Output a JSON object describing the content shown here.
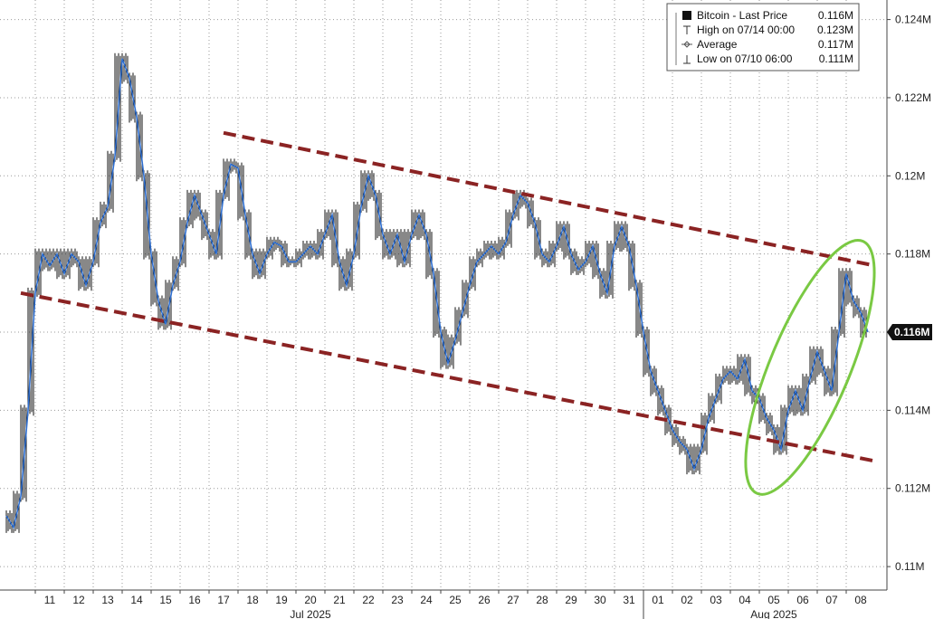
{
  "chart_data": {
    "type": "line",
    "title": "",
    "xlabel": "",
    "ylabel": "",
    "ylim": [
      0.1094,
      0.1245
    ],
    "yticks": [
      {
        "value": 0.11,
        "label": "0.11M"
      },
      {
        "value": 0.112,
        "label": "0.112M"
      },
      {
        "value": 0.114,
        "label": "0.114M"
      },
      {
        "value": 0.116,
        "label": "0.116M"
      },
      {
        "value": 0.118,
        "label": "0.118M"
      },
      {
        "value": 0.12,
        "label": "0.12M"
      },
      {
        "value": 0.122,
        "label": "0.122M"
      },
      {
        "value": 0.124,
        "label": "0.124M"
      }
    ],
    "xlim": [
      "2025-07-10",
      "2025-08-09"
    ],
    "xticks": [
      {
        "date": "2025-07-11",
        "label": "11"
      },
      {
        "date": "2025-07-12",
        "label": "12"
      },
      {
        "date": "2025-07-13",
        "label": "13"
      },
      {
        "date": "2025-07-14",
        "label": "14"
      },
      {
        "date": "2025-07-15",
        "label": "15"
      },
      {
        "date": "2025-07-16",
        "label": "16"
      },
      {
        "date": "2025-07-17",
        "label": "17"
      },
      {
        "date": "2025-07-18",
        "label": "18"
      },
      {
        "date": "2025-07-19",
        "label": "19"
      },
      {
        "date": "2025-07-20",
        "label": "20"
      },
      {
        "date": "2025-07-21",
        "label": "21"
      },
      {
        "date": "2025-07-22",
        "label": "22"
      },
      {
        "date": "2025-07-23",
        "label": "23"
      },
      {
        "date": "2025-07-24",
        "label": "24"
      },
      {
        "date": "2025-07-25",
        "label": "25"
      },
      {
        "date": "2025-07-26",
        "label": "26"
      },
      {
        "date": "2025-07-27",
        "label": "27"
      },
      {
        "date": "2025-07-28",
        "label": "28"
      },
      {
        "date": "2025-07-29",
        "label": "29"
      },
      {
        "date": "2025-07-30",
        "label": "30"
      },
      {
        "date": "2025-07-31",
        "label": "31"
      },
      {
        "date": "2025-08-01",
        "label": "01"
      },
      {
        "date": "2025-08-02",
        "label": "02"
      },
      {
        "date": "2025-08-03",
        "label": "03"
      },
      {
        "date": "2025-08-04",
        "label": "04"
      },
      {
        "date": "2025-08-05",
        "label": "05"
      },
      {
        "date": "2025-08-06",
        "label": "06"
      },
      {
        "date": "2025-08-07",
        "label": "07"
      },
      {
        "date": "2025-08-08",
        "label": "08"
      }
    ],
    "months": [
      {
        "label": "Jul 2025",
        "center": "2025-07-20"
      },
      {
        "label": "Aug 2025",
        "center": "2025-08-05"
      }
    ],
    "month_separator": "2025-08-01",
    "grid": true,
    "legend": {
      "placement": "top-right",
      "entries": [
        {
          "label": "Bitcoin - Last Price",
          "value": "0.116M"
        },
        {
          "label": "High on 07/14 00:00",
          "value": "0.123M"
        },
        {
          "label": "Average",
          "value": "0.117M"
        },
        {
          "label": "Low on 07/10 06:00",
          "value": "0.111M"
        }
      ]
    },
    "last_value": {
      "value": 0.116,
      "label": "0.116M"
    },
    "series": [
      {
        "name": "Bitcoin - Last Price",
        "color": "#2f6fd0",
        "points": [
          [
            "2025-07-10 00:00",
            0.1113
          ],
          [
            "2025-07-10 06:00",
            0.111
          ],
          [
            "2025-07-10 12:00",
            0.1118
          ],
          [
            "2025-07-10 18:00",
            0.114
          ],
          [
            "2025-07-11 00:00",
            0.117
          ],
          [
            "2025-07-11 06:00",
            0.118
          ],
          [
            "2025-07-11 12:00",
            0.1177
          ],
          [
            "2025-07-11 18:00",
            0.118
          ],
          [
            "2025-07-12 00:00",
            0.1175
          ],
          [
            "2025-07-12 06:00",
            0.118
          ],
          [
            "2025-07-12 12:00",
            0.1178
          ],
          [
            "2025-07-12 18:00",
            0.1172
          ],
          [
            "2025-07-13 00:00",
            0.1178
          ],
          [
            "2025-07-13 06:00",
            0.1188
          ],
          [
            "2025-07-13 12:00",
            0.1192
          ],
          [
            "2025-07-13 18:00",
            0.1205
          ],
          [
            "2025-07-14 00:00",
            0.123
          ],
          [
            "2025-07-14 06:00",
            0.1225
          ],
          [
            "2025-07-14 12:00",
            0.1215
          ],
          [
            "2025-07-14 18:00",
            0.12
          ],
          [
            "2025-07-15 00:00",
            0.118
          ],
          [
            "2025-07-15 06:00",
            0.1168
          ],
          [
            "2025-07-15 12:00",
            0.1162
          ],
          [
            "2025-07-15 18:00",
            0.1172
          ],
          [
            "2025-07-16 00:00",
            0.1178
          ],
          [
            "2025-07-16 06:00",
            0.1188
          ],
          [
            "2025-07-16 12:00",
            0.1195
          ],
          [
            "2025-07-16 18:00",
            0.119
          ],
          [
            "2025-07-17 00:00",
            0.1185
          ],
          [
            "2025-07-17 06:00",
            0.118
          ],
          [
            "2025-07-17 12:00",
            0.1195
          ],
          [
            "2025-07-17 18:00",
            0.1203
          ],
          [
            "2025-07-18 00:00",
            0.1202
          ],
          [
            "2025-07-18 06:00",
            0.119
          ],
          [
            "2025-07-18 12:00",
            0.118
          ],
          [
            "2025-07-18 18:00",
            0.1175
          ],
          [
            "2025-07-19 00:00",
            0.118
          ],
          [
            "2025-07-19 06:00",
            0.1183
          ],
          [
            "2025-07-19 12:00",
            0.1182
          ],
          [
            "2025-07-19 18:00",
            0.1178
          ],
          [
            "2025-07-20 00:00",
            0.1178
          ],
          [
            "2025-07-20 06:00",
            0.118
          ],
          [
            "2025-07-20 12:00",
            0.1182
          ],
          [
            "2025-07-20 18:00",
            0.118
          ],
          [
            "2025-07-21 00:00",
            0.1185
          ],
          [
            "2025-07-21 06:00",
            0.119
          ],
          [
            "2025-07-21 12:00",
            0.1178
          ],
          [
            "2025-07-21 18:00",
            0.1172
          ],
          [
            "2025-07-22 00:00",
            0.118
          ],
          [
            "2025-07-22 06:00",
            0.1192
          ],
          [
            "2025-07-22 12:00",
            0.12
          ],
          [
            "2025-07-22 18:00",
            0.1195
          ],
          [
            "2025-07-23 00:00",
            0.1185
          ],
          [
            "2025-07-23 06:00",
            0.118
          ],
          [
            "2025-07-23 12:00",
            0.1185
          ],
          [
            "2025-07-23 18:00",
            0.1178
          ],
          [
            "2025-07-24 00:00",
            0.1185
          ],
          [
            "2025-07-24 06:00",
            0.119
          ],
          [
            "2025-07-24 12:00",
            0.1185
          ],
          [
            "2025-07-24 18:00",
            0.1175
          ],
          [
            "2025-07-25 00:00",
            0.116
          ],
          [
            "2025-07-25 06:00",
            0.1152
          ],
          [
            "2025-07-25 12:00",
            0.1158
          ],
          [
            "2025-07-25 18:00",
            0.1165
          ],
          [
            "2025-07-26 00:00",
            0.1172
          ],
          [
            "2025-07-26 06:00",
            0.1178
          ],
          [
            "2025-07-26 12:00",
            0.118
          ],
          [
            "2025-07-26 18:00",
            0.1182
          ],
          [
            "2025-07-27 00:00",
            0.118
          ],
          [
            "2025-07-27 06:00",
            0.1183
          ],
          [
            "2025-07-27 12:00",
            0.119
          ],
          [
            "2025-07-27 18:00",
            0.1195
          ],
          [
            "2025-07-28 00:00",
            0.1193
          ],
          [
            "2025-07-28 06:00",
            0.1188
          ],
          [
            "2025-07-28 12:00",
            0.118
          ],
          [
            "2025-07-28 18:00",
            0.1178
          ],
          [
            "2025-07-29 00:00",
            0.1182
          ],
          [
            "2025-07-29 06:00",
            0.1187
          ],
          [
            "2025-07-29 12:00",
            0.118
          ],
          [
            "2025-07-29 18:00",
            0.1176
          ],
          [
            "2025-07-30 00:00",
            0.1178
          ],
          [
            "2025-07-30 06:00",
            0.1182
          ],
          [
            "2025-07-30 12:00",
            0.1175
          ],
          [
            "2025-07-30 18:00",
            0.117
          ],
          [
            "2025-07-31 00:00",
            0.1182
          ],
          [
            "2025-07-31 06:00",
            0.1187
          ],
          [
            "2025-07-31 12:00",
            0.1182
          ],
          [
            "2025-07-31 18:00",
            0.1172
          ],
          [
            "2025-08-01 00:00",
            0.116
          ],
          [
            "2025-08-01 06:00",
            0.115
          ],
          [
            "2025-08-01 12:00",
            0.1145
          ],
          [
            "2025-08-01 18:00",
            0.114
          ],
          [
            "2025-08-02 00:00",
            0.1135
          ],
          [
            "2025-08-02 06:00",
            0.1132
          ],
          [
            "2025-08-02 12:00",
            0.113
          ],
          [
            "2025-08-02 18:00",
            0.1125
          ],
          [
            "2025-08-03 00:00",
            0.113
          ],
          [
            "2025-08-03 06:00",
            0.1138
          ],
          [
            "2025-08-03 12:00",
            0.1143
          ],
          [
            "2025-08-03 18:00",
            0.1148
          ],
          [
            "2025-08-04 00:00",
            0.115
          ],
          [
            "2025-08-04 06:00",
            0.1148
          ],
          [
            "2025-08-04 12:00",
            0.1153
          ],
          [
            "2025-08-04 18:00",
            0.1145
          ],
          [
            "2025-08-05 00:00",
            0.1143
          ],
          [
            "2025-08-05 06:00",
            0.1138
          ],
          [
            "2025-08-05 12:00",
            0.1135
          ],
          [
            "2025-08-05 18:00",
            0.113
          ],
          [
            "2025-08-06 00:00",
            0.114
          ],
          [
            "2025-08-06 06:00",
            0.1145
          ],
          [
            "2025-08-06 12:00",
            0.114
          ],
          [
            "2025-08-06 18:00",
            0.1148
          ],
          [
            "2025-08-07 00:00",
            0.1155
          ],
          [
            "2025-08-07 06:00",
            0.115
          ],
          [
            "2025-08-07 12:00",
            0.1145
          ],
          [
            "2025-08-07 18:00",
            0.116
          ],
          [
            "2025-08-08 00:00",
            0.1175
          ],
          [
            "2025-08-08 06:00",
            0.1168
          ],
          [
            "2025-08-08 12:00",
            0.1165
          ],
          [
            "2025-08-08 18:00",
            0.116
          ]
        ]
      }
    ],
    "annotations": [
      {
        "type": "trendline",
        "style": "dashed",
        "color": "#8b2323",
        "from": [
          "2025-07-17 12:00",
          0.1211
        ],
        "to": [
          "2025-08-09 00:00",
          0.1177
        ]
      },
      {
        "type": "trendline",
        "style": "dashed",
        "color": "#8b2323",
        "from": [
          "2025-07-10 12:00",
          0.117
        ],
        "to": [
          "2025-08-09 00:00",
          0.1127
        ]
      },
      {
        "type": "ellipse",
        "color": "#7ac943",
        "from": [
          "2025-08-05 00:00",
          0.112
        ],
        "to": [
          "2025-08-08 12:00",
          0.1182
        ]
      }
    ]
  }
}
